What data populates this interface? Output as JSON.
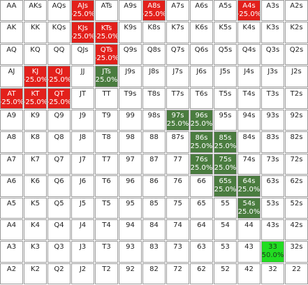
{
  "grid": {
    "rows": [
      [
        {
          "label": "AA"
        },
        {
          "label": "AKs"
        },
        {
          "label": "AQs"
        },
        {
          "label": "AJs",
          "note": "-25.0%",
          "color": "#e3201b",
          "text_color": "#ffffff"
        },
        {
          "label": "ATs"
        },
        {
          "label": "A9s"
        },
        {
          "label": "A8s",
          "note": "-25.0%",
          "color": "#e3201b",
          "text_color": "#ffffff"
        },
        {
          "label": "A7s"
        },
        {
          "label": "A6s"
        },
        {
          "label": "A5s"
        },
        {
          "label": "A4s",
          "note": "-25.0%",
          "color": "#e3201b",
          "text_color": "#ffffff"
        },
        {
          "label": "A3s"
        },
        {
          "label": "A2s"
        }
      ],
      [
        {
          "label": "AK"
        },
        {
          "label": "KK"
        },
        {
          "label": "KQs"
        },
        {
          "label": "KJs",
          "note": "-25.0%",
          "color": "#e3201b",
          "text_color": "#ffffff"
        },
        {
          "label": "KTs",
          "note": "-25.0%",
          "color": "#e3201b",
          "text_color": "#ffffff"
        },
        {
          "label": "K9s"
        },
        {
          "label": "K8s"
        },
        {
          "label": "K7s"
        },
        {
          "label": "K6s"
        },
        {
          "label": "K5s"
        },
        {
          "label": "K4s"
        },
        {
          "label": "K3s"
        },
        {
          "label": "K2s"
        }
      ],
      [
        {
          "label": "AQ"
        },
        {
          "label": "KQ"
        },
        {
          "label": "QQ"
        },
        {
          "label": "QJs"
        },
        {
          "label": "QTs",
          "note": "-25.0%",
          "color": "#e3201b",
          "text_color": "#ffffff"
        },
        {
          "label": "Q9s"
        },
        {
          "label": "Q8s"
        },
        {
          "label": "Q7s"
        },
        {
          "label": "Q6s"
        },
        {
          "label": "Q5s"
        },
        {
          "label": "Q4s"
        },
        {
          "label": "Q3s"
        },
        {
          "label": "Q2s"
        }
      ],
      [
        {
          "label": "AJ"
        },
        {
          "label": "KJ",
          "note": "-25.0%",
          "color": "#e3201b",
          "text_color": "#ffffff"
        },
        {
          "label": "QJ",
          "note": "-25.0%",
          "color": "#e3201b",
          "text_color": "#ffffff"
        },
        {
          "label": "JJ"
        },
        {
          "label": "JTs",
          "note": "25.0%",
          "color": "#4a7c3f",
          "text_color": "#ffffff"
        },
        {
          "label": "J9s"
        },
        {
          "label": "J8s"
        },
        {
          "label": "J7s"
        },
        {
          "label": "J6s"
        },
        {
          "label": "J5s"
        },
        {
          "label": "J4s"
        },
        {
          "label": "J3s"
        },
        {
          "label": "J2s"
        }
      ],
      [
        {
          "label": "AT",
          "note": "-25.0%",
          "color": "#e3201b",
          "text_color": "#ffffff"
        },
        {
          "label": "KT",
          "note": "-25.0%",
          "color": "#e3201b",
          "text_color": "#ffffff"
        },
        {
          "label": "QT",
          "note": "-25.0%",
          "color": "#e3201b",
          "text_color": "#ffffff"
        },
        {
          "label": "JT"
        },
        {
          "label": "TT"
        },
        {
          "label": "T9s"
        },
        {
          "label": "T8s"
        },
        {
          "label": "T7s"
        },
        {
          "label": "T6s"
        },
        {
          "label": "T5s"
        },
        {
          "label": "T4s"
        },
        {
          "label": "T3s"
        },
        {
          "label": "T2s"
        }
      ],
      [
        {
          "label": "A9"
        },
        {
          "label": "K9"
        },
        {
          "label": "Q9"
        },
        {
          "label": "J9"
        },
        {
          "label": "T9"
        },
        {
          "label": "99"
        },
        {
          "label": "98s"
        },
        {
          "label": "97s",
          "note": "25.0%",
          "color": "#4a7c3f",
          "text_color": "#ffffff"
        },
        {
          "label": "96s",
          "note": "25.0%",
          "color": "#4a7c3f",
          "text_color": "#ffffff"
        },
        {
          "label": "95s"
        },
        {
          "label": "94s"
        },
        {
          "label": "93s"
        },
        {
          "label": "92s"
        }
      ],
      [
        {
          "label": "A8"
        },
        {
          "label": "K8"
        },
        {
          "label": "Q8"
        },
        {
          "label": "J8"
        },
        {
          "label": "T8"
        },
        {
          "label": "98"
        },
        {
          "label": "88"
        },
        {
          "label": "87s"
        },
        {
          "label": "86s",
          "note": "25.0%",
          "color": "#4a7c3f",
          "text_color": "#ffffff"
        },
        {
          "label": "85s",
          "note": "25.0%",
          "color": "#4a7c3f",
          "text_color": "#ffffff"
        },
        {
          "label": "84s"
        },
        {
          "label": "83s"
        },
        {
          "label": "82s"
        }
      ],
      [
        {
          "label": "A7"
        },
        {
          "label": "K7"
        },
        {
          "label": "Q7"
        },
        {
          "label": "J7"
        },
        {
          "label": "T7"
        },
        {
          "label": "97"
        },
        {
          "label": "87"
        },
        {
          "label": "77"
        },
        {
          "label": "76s",
          "note": "25.0%",
          "color": "#4a7c3f",
          "text_color": "#ffffff"
        },
        {
          "label": "75s",
          "note": "25.0%",
          "color": "#4a7c3f",
          "text_color": "#ffffff"
        },
        {
          "label": "74s"
        },
        {
          "label": "73s"
        },
        {
          "label": "72s"
        }
      ],
      [
        {
          "label": "A6"
        },
        {
          "label": "K6"
        },
        {
          "label": "Q6"
        },
        {
          "label": "J6"
        },
        {
          "label": "T6"
        },
        {
          "label": "96"
        },
        {
          "label": "86"
        },
        {
          "label": "76"
        },
        {
          "label": "66"
        },
        {
          "label": "65s",
          "note": "25.0%",
          "color": "#4a7c3f",
          "text_color": "#ffffff"
        },
        {
          "label": "64s",
          "note": "25.0%",
          "color": "#4a7c3f",
          "text_color": "#ffffff"
        },
        {
          "label": "63s"
        },
        {
          "label": "62s"
        }
      ],
      [
        {
          "label": "A5"
        },
        {
          "label": "K5"
        },
        {
          "label": "Q5"
        },
        {
          "label": "J5"
        },
        {
          "label": "T5"
        },
        {
          "label": "95"
        },
        {
          "label": "85"
        },
        {
          "label": "75"
        },
        {
          "label": "65"
        },
        {
          "label": "55"
        },
        {
          "label": "54s",
          "note": "25.0%",
          "color": "#4a7c3f",
          "text_color": "#ffffff"
        },
        {
          "label": "53s"
        },
        {
          "label": "52s"
        }
      ],
      [
        {
          "label": "A4"
        },
        {
          "label": "K4"
        },
        {
          "label": "Q4"
        },
        {
          "label": "J4"
        },
        {
          "label": "T4"
        },
        {
          "label": "94"
        },
        {
          "label": "84"
        },
        {
          "label": "74"
        },
        {
          "label": "64"
        },
        {
          "label": "54"
        },
        {
          "label": "44"
        },
        {
          "label": "43s"
        },
        {
          "label": "42s"
        }
      ],
      [
        {
          "label": "A3"
        },
        {
          "label": "K3"
        },
        {
          "label": "Q3"
        },
        {
          "label": "J3"
        },
        {
          "label": "T3"
        },
        {
          "label": "93"
        },
        {
          "label": "83"
        },
        {
          "label": "73"
        },
        {
          "label": "63"
        },
        {
          "label": "53"
        },
        {
          "label": "43"
        },
        {
          "label": "33",
          "note": "50.0%",
          "color": "#22dd22",
          "text_color": "#1a3a1a"
        },
        {
          "label": "32s"
        }
      ],
      [
        {
          "label": "A2"
        },
        {
          "label": "K2"
        },
        {
          "label": "Q2"
        },
        {
          "label": "J2"
        },
        {
          "label": "T2"
        },
        {
          "label": "92"
        },
        {
          "label": "82"
        },
        {
          "label": "72"
        },
        {
          "label": "62"
        },
        {
          "label": "52"
        },
        {
          "label": "42"
        },
        {
          "label": "32"
        },
        {
          "label": "22"
        }
      ]
    ]
  }
}
